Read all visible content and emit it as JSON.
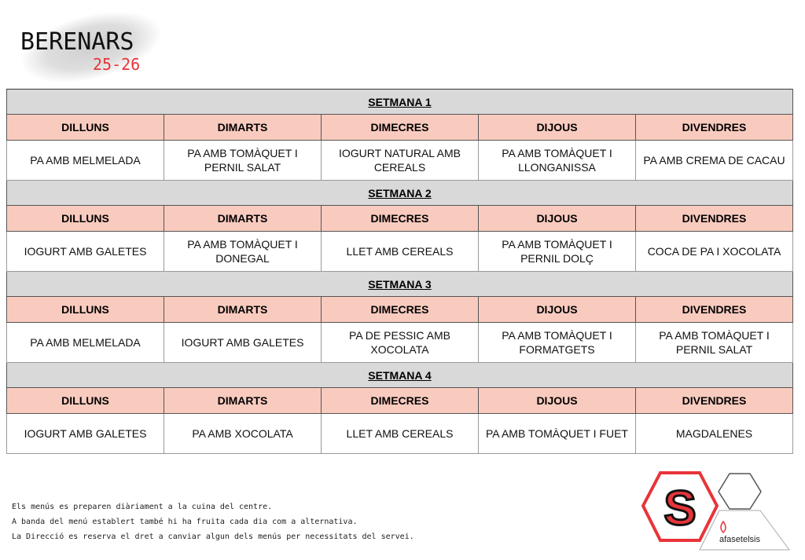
{
  "header": {
    "title": "BERENARS",
    "year": "25-26"
  },
  "days": [
    "DILLUNS",
    "DIMARTS",
    "DIMECRES",
    "DIJOUS",
    "DIVENDRES"
  ],
  "weeks": [
    {
      "label": "SETMANA 1",
      "items": [
        "PA AMB MELMELADA",
        "PA AMB TOMÀQUET I PERNIL SALAT",
        "IOGURT NATURAL AMB CEREALS",
        "PA AMB TOMÀQUET I LLONGANISSA",
        "PA AMB CREMA DE CACAU"
      ]
    },
    {
      "label": "SETMANA 2",
      "items": [
        "IOGURT AMB GALETES",
        "PA AMB TOMÀQUET I DONEGAL",
        "LLET AMB CEREALS",
        "PA AMB TOMÀQUET I PERNIL DOLÇ",
        "COCA DE PA I XOCOLATA"
      ]
    },
    {
      "label": "SETMANA 3",
      "items": [
        "PA AMB MELMELADA",
        "IOGURT AMB GALETES",
        "PA DE PESSIC AMB XOCOLATA",
        "PA AMB TOMÀQUET I FORMATGETS",
        "PA AMB TOMÀQUET I PERNIL SALAT"
      ]
    },
    {
      "label": "SETMANA 4",
      "items": [
        "IOGURT AMB GALETES",
        "PA AMB XOCOLATA",
        "LLET AMB CEREALS",
        "PA AMB TOMÀQUET I FUET",
        "MAGDALENES"
      ]
    }
  ],
  "notes": [
    "Els menús es preparen diàriament a la cuina del centre.",
    "A banda del menú establert també hi ha fruita cada dia com a alternativa.",
    "La Direcció es reserva el dret a canviar algun dels menús per necessitats del servei."
  ],
  "logo": {
    "letter": "S",
    "text": "afasetelsis"
  },
  "colors": {
    "week_bg": "#d9d9d9",
    "day_bg": "#f9cbbf",
    "accent": "#e8343a"
  }
}
